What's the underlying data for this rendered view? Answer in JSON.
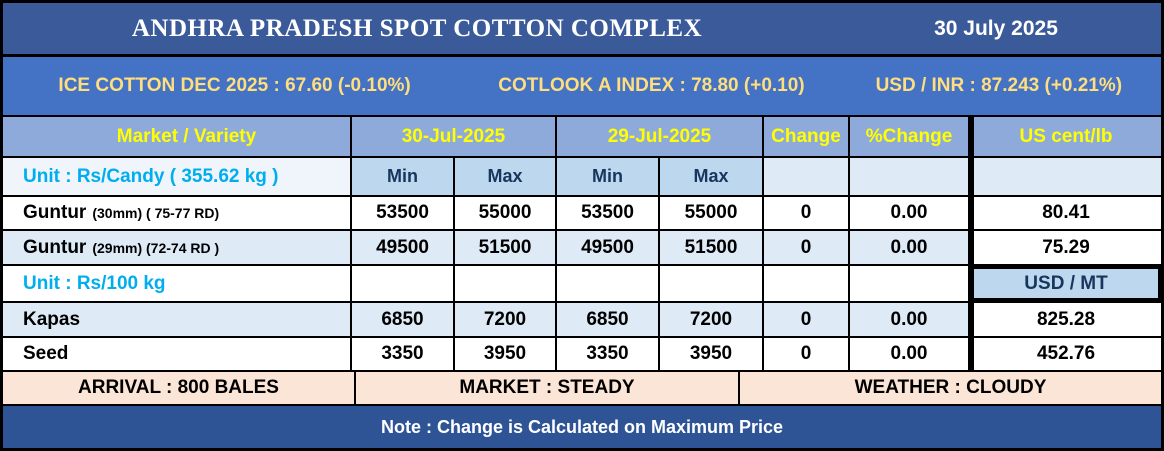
{
  "header": {
    "title": "ANDHRA PRADESH SPOT COTTON COMPLEX",
    "date": "30 July 2025"
  },
  "ticker": {
    "ice": "ICE COTTON DEC 2025 : 67.60 (-0.10%)",
    "cotlook": "COTLOOK A INDEX : 78.80 (+0.10)",
    "usd_inr": "USD / INR : 87.243 (+0.21%)"
  },
  "table": {
    "header": {
      "market_variety": "Market / Variety",
      "date_today": "30-Jul-2025",
      "date_prev": "29-Jul-2025",
      "change": "Change",
      "pct_change": "%Change",
      "us_cent_lb": "US cent/lb"
    },
    "subheader": {
      "min": "Min",
      "max": "Max"
    },
    "unit_candy": {
      "label": "Unit : Rs/Candy ( 355.62 kg )"
    },
    "rows": [
      {
        "name": "Guntur",
        "spec": "(30mm) ( 75-77 RD)",
        "t_min": "53500",
        "t_max": "55000",
        "p_min": "53500",
        "p_max": "55000",
        "change": "0",
        "pct": "0.00",
        "us": "80.41"
      },
      {
        "name": "Guntur",
        "spec": "(29mm) (72-74 RD )",
        "t_min": "49500",
        "t_max": "51500",
        "p_min": "49500",
        "p_max": "51500",
        "change": "0",
        "pct": "0.00",
        "us": "75.29"
      }
    ],
    "unit_100kg": {
      "label": "Unit : Rs/100 kg",
      "usd_mt": "USD / MT"
    },
    "rows2": [
      {
        "name": "Kapas",
        "t_min": "6850",
        "t_max": "7200",
        "p_min": "6850",
        "p_max": "7200",
        "change": "0",
        "pct": "0.00",
        "us": "825.28"
      },
      {
        "name": "Seed",
        "t_min": "3350",
        "t_max": "3950",
        "p_min": "3350",
        "p_max": "3950",
        "change": "0",
        "pct": "0.00",
        "us": "452.76"
      }
    ]
  },
  "status": {
    "arrival": "ARRIVAL : 800 BALES",
    "market": "MARKET : STEADY",
    "weather": "WEATHER : CLOUDY"
  },
  "note": "Note : Change is Calculated on Maximum Price",
  "colors": {
    "title_bar": "#3B5A9A",
    "ticker_bar": "#4472C4",
    "ticker_text": "#FFDE7E",
    "header_row": "#8EAADB",
    "header_text": "#FFFF00",
    "minmax_cell": "#BDD7EE",
    "row_tint": "#DEEBF7",
    "unit_text": "#00AEEF",
    "navy_text": "#17365D",
    "status_bar": "#FBE5D6",
    "note_bar": "#2F5496"
  }
}
